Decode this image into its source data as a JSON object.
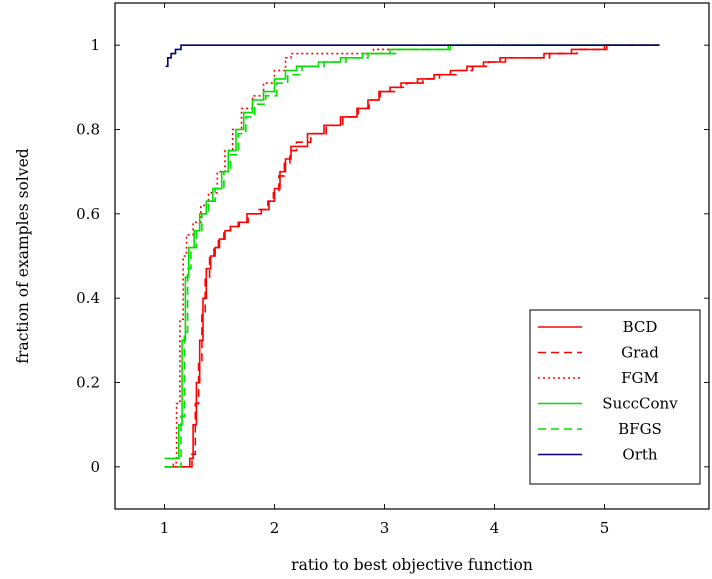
{
  "chart_data": {
    "type": "line",
    "step": true,
    "title": "",
    "xlabel": "ratio to best objective function",
    "ylabel": "fraction of examples solved",
    "xlim": [
      0.55,
      5.95
    ],
    "ylim": [
      -0.1,
      1.1
    ],
    "x_ticks": [
      1,
      2,
      3,
      4,
      5
    ],
    "x_tick_labels": [
      "1",
      "2",
      "3",
      "4",
      "5"
    ],
    "y_ticks": [
      0,
      0.2,
      0.4,
      0.6,
      0.8,
      1
    ],
    "y_tick_labels": [
      "0",
      "0.2",
      "0.4",
      "0.6",
      "0.8",
      "1"
    ],
    "grid": false,
    "legend_position": "bottom-right",
    "series": [
      {
        "name": "BCD",
        "color": "#ff0000",
        "dash": "solid",
        "points": [
          [
            1.0,
            0.0
          ],
          [
            1.2,
            0.0
          ],
          [
            1.23,
            0.02
          ],
          [
            1.26,
            0.1
          ],
          [
            1.29,
            0.2
          ],
          [
            1.32,
            0.3
          ],
          [
            1.35,
            0.4
          ],
          [
            1.38,
            0.47
          ],
          [
            1.42,
            0.5
          ],
          [
            1.46,
            0.52
          ],
          [
            1.5,
            0.54
          ],
          [
            1.55,
            0.56
          ],
          [
            1.6,
            0.57
          ],
          [
            1.68,
            0.58
          ],
          [
            1.75,
            0.6
          ],
          [
            1.88,
            0.61
          ],
          [
            1.95,
            0.63
          ],
          [
            2.0,
            0.66
          ],
          [
            2.05,
            0.7
          ],
          [
            2.1,
            0.73
          ],
          [
            2.15,
            0.76
          ],
          [
            2.3,
            0.79
          ],
          [
            2.45,
            0.81
          ],
          [
            2.6,
            0.83
          ],
          [
            2.75,
            0.85
          ],
          [
            2.85,
            0.87
          ],
          [
            2.95,
            0.89
          ],
          [
            3.05,
            0.9
          ],
          [
            3.15,
            0.91
          ],
          [
            3.3,
            0.92
          ],
          [
            3.45,
            0.93
          ],
          [
            3.6,
            0.94
          ],
          [
            3.75,
            0.95
          ],
          [
            3.9,
            0.96
          ],
          [
            4.05,
            0.97
          ],
          [
            4.25,
            0.97
          ],
          [
            4.45,
            0.98
          ],
          [
            4.7,
            0.99
          ],
          [
            4.98,
            0.99
          ],
          [
            5.0,
            1.0
          ],
          [
            5.5,
            1.0
          ]
        ]
      },
      {
        "name": "Grad",
        "color": "#ff0000",
        "dash": "dashed",
        "points": [
          [
            1.0,
            0.0
          ],
          [
            1.22,
            0.0
          ],
          [
            1.25,
            0.03
          ],
          [
            1.28,
            0.15
          ],
          [
            1.31,
            0.25
          ],
          [
            1.34,
            0.36
          ],
          [
            1.37,
            0.45
          ],
          [
            1.41,
            0.5
          ],
          [
            1.45,
            0.52
          ],
          [
            1.49,
            0.54
          ],
          [
            1.54,
            0.56
          ],
          [
            1.6,
            0.57
          ],
          [
            1.67,
            0.58
          ],
          [
            1.76,
            0.6
          ],
          [
            1.86,
            0.61
          ],
          [
            1.94,
            0.63
          ],
          [
            1.99,
            0.65
          ],
          [
            2.04,
            0.69
          ],
          [
            2.09,
            0.72
          ],
          [
            2.14,
            0.75
          ],
          [
            2.2,
            0.77
          ],
          [
            2.33,
            0.79
          ],
          [
            2.47,
            0.81
          ],
          [
            2.62,
            0.83
          ],
          [
            2.76,
            0.85
          ],
          [
            2.86,
            0.87
          ],
          [
            2.96,
            0.89
          ],
          [
            3.1,
            0.9
          ],
          [
            3.2,
            0.91
          ],
          [
            3.35,
            0.92
          ],
          [
            3.5,
            0.93
          ],
          [
            3.65,
            0.94
          ],
          [
            3.8,
            0.95
          ],
          [
            3.95,
            0.96
          ],
          [
            4.1,
            0.97
          ],
          [
            4.3,
            0.97
          ],
          [
            4.5,
            0.98
          ],
          [
            4.75,
            0.99
          ],
          [
            5.02,
            1.0
          ],
          [
            5.5,
            1.0
          ]
        ]
      },
      {
        "name": "FGM",
        "color": "#ff0000",
        "dash": "dotted",
        "points": [
          [
            1.0,
            0.0
          ],
          [
            1.08,
            0.01
          ],
          [
            1.11,
            0.15
          ],
          [
            1.14,
            0.35
          ],
          [
            1.17,
            0.5
          ],
          [
            1.2,
            0.55
          ],
          [
            1.26,
            0.58
          ],
          [
            1.33,
            0.62
          ],
          [
            1.4,
            0.65
          ],
          [
            1.48,
            0.7
          ],
          [
            1.55,
            0.75
          ],
          [
            1.62,
            0.8
          ],
          [
            1.7,
            0.85
          ],
          [
            1.8,
            0.88
          ],
          [
            1.9,
            0.91
          ],
          [
            2.0,
            0.94
          ],
          [
            2.1,
            0.97
          ],
          [
            2.15,
            0.98
          ],
          [
            2.5,
            0.98
          ],
          [
            2.9,
            0.99
          ],
          [
            3.4,
            1.0
          ],
          [
            5.5,
            1.0
          ]
        ]
      },
      {
        "name": "SuccConv",
        "color": "#00e000",
        "dash": "solid",
        "points": [
          [
            1.0,
            0.02
          ],
          [
            1.1,
            0.02
          ],
          [
            1.13,
            0.1
          ],
          [
            1.16,
            0.3
          ],
          [
            1.19,
            0.45
          ],
          [
            1.22,
            0.52
          ],
          [
            1.27,
            0.56
          ],
          [
            1.32,
            0.6
          ],
          [
            1.38,
            0.63
          ],
          [
            1.44,
            0.66
          ],
          [
            1.52,
            0.7
          ],
          [
            1.58,
            0.75
          ],
          [
            1.65,
            0.8
          ],
          [
            1.72,
            0.84
          ],
          [
            1.8,
            0.87
          ],
          [
            1.9,
            0.89
          ],
          [
            2.0,
            0.92
          ],
          [
            2.1,
            0.94
          ],
          [
            2.2,
            0.95
          ],
          [
            2.4,
            0.96
          ],
          [
            2.6,
            0.97
          ],
          [
            2.8,
            0.98
          ],
          [
            3.05,
            0.99
          ],
          [
            3.3,
            0.99
          ],
          [
            3.6,
            1.0
          ],
          [
            5.5,
            1.0
          ]
        ]
      },
      {
        "name": "BFGS",
        "color": "#00e000",
        "dash": "dashed",
        "points": [
          [
            1.0,
            0.0
          ],
          [
            1.12,
            0.0
          ],
          [
            1.15,
            0.12
          ],
          [
            1.18,
            0.32
          ],
          [
            1.21,
            0.47
          ],
          [
            1.24,
            0.52
          ],
          [
            1.29,
            0.56
          ],
          [
            1.34,
            0.6
          ],
          [
            1.4,
            0.63
          ],
          [
            1.46,
            0.66
          ],
          [
            1.54,
            0.7
          ],
          [
            1.6,
            0.74
          ],
          [
            1.67,
            0.79
          ],
          [
            1.74,
            0.83
          ],
          [
            1.82,
            0.86
          ],
          [
            1.92,
            0.88
          ],
          [
            2.02,
            0.91
          ],
          [
            2.12,
            0.93
          ],
          [
            2.25,
            0.95
          ],
          [
            2.45,
            0.96
          ],
          [
            2.65,
            0.97
          ],
          [
            2.85,
            0.98
          ],
          [
            3.1,
            0.99
          ],
          [
            3.35,
            0.99
          ],
          [
            3.58,
            1.0
          ],
          [
            5.5,
            1.0
          ]
        ]
      },
      {
        "name": "Orth",
        "color": "#000080",
        "dash": "solid",
        "points": [
          [
            1.01,
            0.95
          ],
          [
            1.03,
            0.97
          ],
          [
            1.06,
            0.98
          ],
          [
            1.1,
            0.99
          ],
          [
            1.15,
            1.0
          ],
          [
            5.5,
            1.0
          ]
        ]
      }
    ]
  }
}
